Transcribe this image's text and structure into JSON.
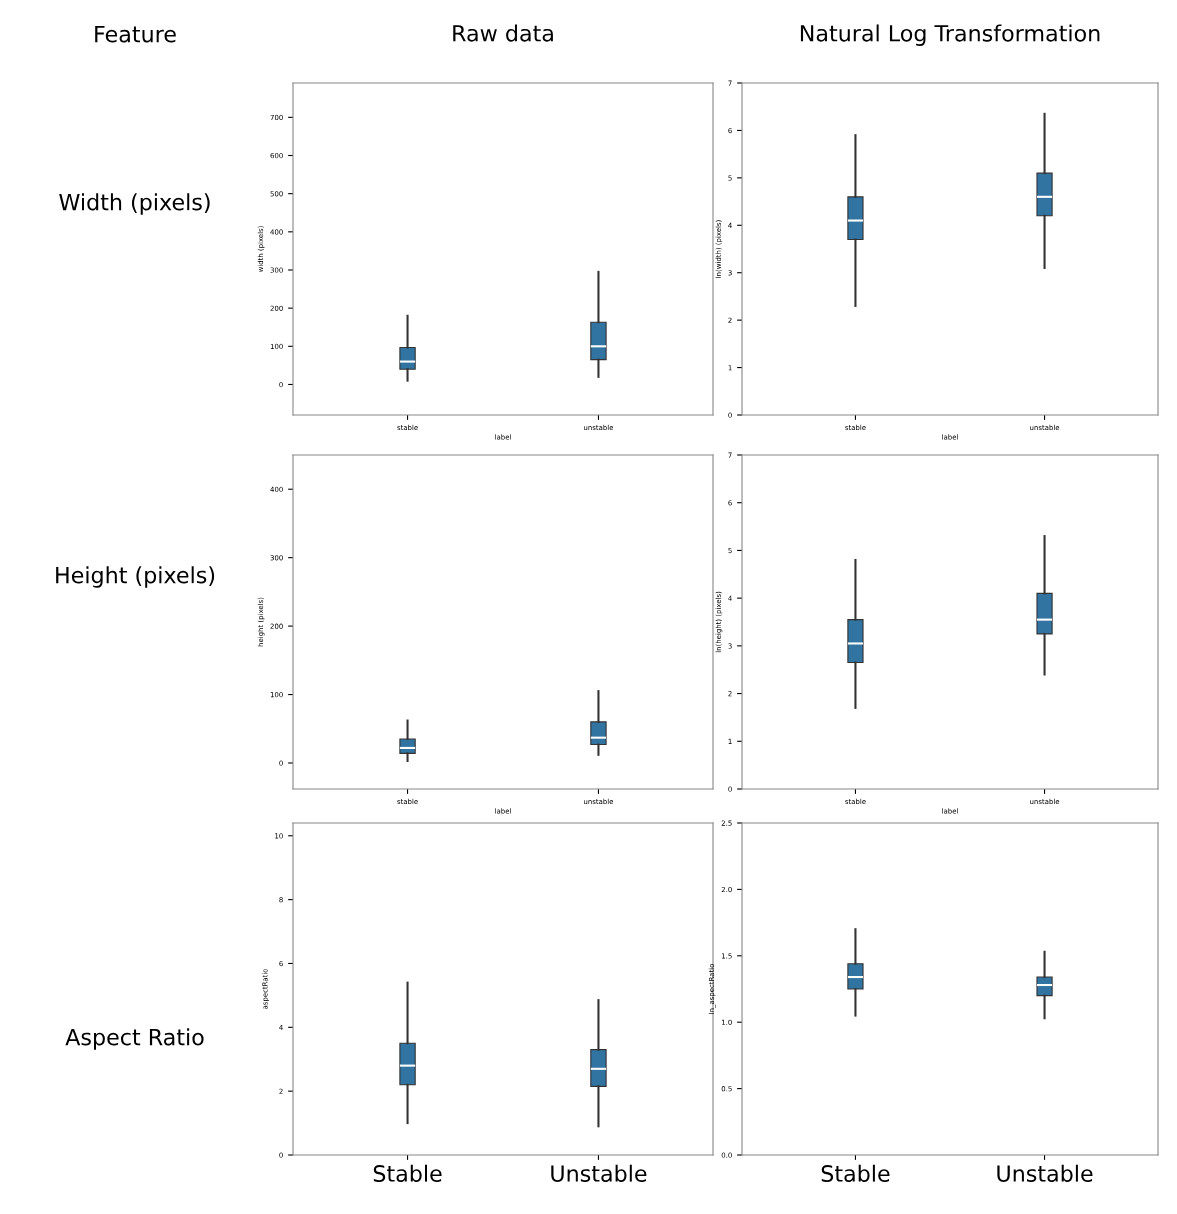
{
  "chart_data": [
    {
      "type": "other",
      "annotations": [
        "Feature",
        "Width (pixels)",
        "Height (pixels)",
        "Aspect Ratio"
      ]
    },
    {
      "type": "box",
      "title": "Raw data",
      "categories": [
        "stable",
        "unstable"
      ],
      "xlabel": "label",
      "ylabel": "width (pixels)",
      "ylim": [
        -80,
        790
      ],
      "yticks": [
        0,
        100,
        200,
        300,
        400,
        500,
        600,
        700
      ],
      "series": [
        {
          "color": "#3274a1",
          "boxes": [
            {
              "low": 10,
              "q1": 40,
              "median": 60,
              "q3": 97,
              "high": 180
            },
            {
              "low": 20,
              "q1": 65,
              "median": 100,
              "q3": 163,
              "high": 295
            }
          ]
        }
      ]
    },
    {
      "type": "box",
      "title": "Natural Log Transformation",
      "categories": [
        "stable",
        "unstable"
      ],
      "xlabel": "label",
      "ylabel": "ln(width) (pixels)",
      "ylim": [
        0,
        7
      ],
      "yticks": [
        0,
        1,
        2,
        3,
        4,
        5,
        6,
        7
      ],
      "series": [
        {
          "color": "#3274a1",
          "boxes": [
            {
              "low": 2.3,
              "q1": 3.7,
              "median": 4.1,
              "q3": 4.6,
              "high": 5.9
            },
            {
              "low": 3.1,
              "q1": 4.2,
              "median": 4.6,
              "q3": 5.1,
              "high": 6.35
            }
          ]
        }
      ]
    },
    {
      "type": "box",
      "categories": [
        "stable",
        "unstable"
      ],
      "xlabel": "label",
      "ylabel": "height (pixels)",
      "ylim": [
        -38,
        450
      ],
      "yticks": [
        0,
        100,
        200,
        300,
        400
      ],
      "series": [
        {
          "color": "#3274a1",
          "boxes": [
            {
              "low": 3,
              "q1": 14,
              "median": 22,
              "q3": 35,
              "high": 62
            },
            {
              "low": 12,
              "q1": 27,
              "median": 37,
              "q3": 60,
              "high": 105
            }
          ]
        }
      ]
    },
    {
      "type": "box",
      "categories": [
        "stable",
        "unstable"
      ],
      "xlabel": "label",
      "ylabel": "ln(height) (pixels)",
      "ylim": [
        0,
        7
      ],
      "yticks": [
        0,
        1,
        2,
        3,
        4,
        5,
        6,
        7
      ],
      "series": [
        {
          "color": "#3274a1",
          "boxes": [
            {
              "low": 1.7,
              "q1": 2.65,
              "median": 3.05,
              "q3": 3.55,
              "high": 4.8
            },
            {
              "low": 2.4,
              "q1": 3.25,
              "median": 3.55,
              "q3": 4.1,
              "high": 5.3
            }
          ]
        }
      ]
    },
    {
      "type": "box",
      "categories": [
        "Stable",
        "Unstable"
      ],
      "ylabel": "aspectRatio",
      "ylim": [
        0,
        10.4
      ],
      "yticks": [
        0,
        2,
        4,
        6,
        8,
        10
      ],
      "series": [
        {
          "color": "#3274a1",
          "boxes": [
            {
              "low": 1.0,
              "q1": 2.2,
              "median": 2.8,
              "q3": 3.5,
              "high": 5.4
            },
            {
              "low": 0.9,
              "q1": 2.15,
              "median": 2.7,
              "q3": 3.3,
              "high": 4.85
            }
          ]
        }
      ]
    },
    {
      "type": "box",
      "categories": [
        "Stable",
        "Unstable"
      ],
      "ylabel": "ln_aspectRatio",
      "ylim": [
        0,
        2.5
      ],
      "yticks": [
        {
          "value": 0,
          "label": "0.0"
        },
        {
          "value": 0.5,
          "label": "0.5"
        },
        {
          "value": 1,
          "label": "1.0"
        },
        {
          "value": 1.5,
          "label": "1.5"
        },
        {
          "value": 2,
          "label": "2.0"
        },
        {
          "value": 2.5,
          "label": "2.5"
        }
      ],
      "series": [
        {
          "color": "#3274a1",
          "boxes": [
            {
              "low": 1.05,
              "q1": 1.25,
              "median": 1.34,
              "q3": 1.44,
              "high": 1.7
            },
            {
              "low": 1.03,
              "q1": 1.2,
              "median": 1.28,
              "q3": 1.34,
              "high": 1.53
            }
          ]
        }
      ]
    }
  ]
}
